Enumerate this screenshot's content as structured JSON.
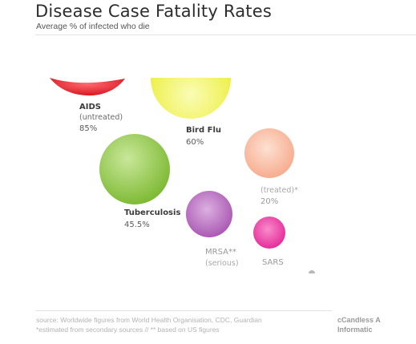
{
  "header": {
    "title": "Disease Case Fatality Rates",
    "subtitle": "Average % of infected who die"
  },
  "chart_data": {
    "type": "bubble",
    "title": "Disease Case Fatality Rates",
    "subtitle": "Average % of infected who die",
    "items": [
      {
        "name": "AIDS",
        "note": "(untreated)",
        "value_label": "85%",
        "value": 85,
        "color": "#e8202a"
      },
      {
        "name": "Bird Flu",
        "note": "",
        "value_label": "60%",
        "value": 60,
        "color": "#eef04a"
      },
      {
        "name": "",
        "note": "(treated)*",
        "value_label": "20%",
        "value": 20,
        "color": "#f9b99a"
      },
      {
        "name": "Tuberculosis",
        "note": "",
        "value_label": "45.5%",
        "value": 45.5,
        "color": "#8cc63f"
      },
      {
        "name": "MRSA**",
        "note": "(serious)",
        "value_label": "",
        "value": null,
        "color": "#b96bc0"
      },
      {
        "name": "SARS",
        "note": "",
        "value_label": "",
        "value": null,
        "color": "#ec3fa6"
      }
    ]
  },
  "footer": {
    "source": "source: Worldwide figures from World Health Organisation, CDC, Guardian",
    "note": "*estimated from secondary sources // ** based on US figures",
    "credit1": "cCandless A",
    "credit2": "Informatic"
  }
}
